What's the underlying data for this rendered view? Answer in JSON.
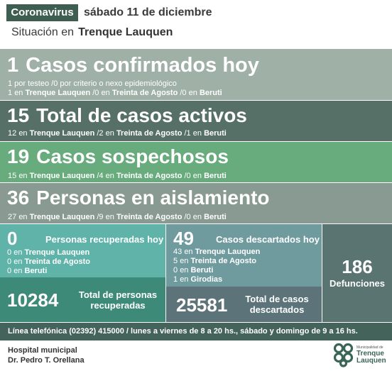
{
  "header": {
    "tag": "Coronavirus",
    "date": "sábado 11 de diciembre",
    "situacion_label": "Situación en",
    "city": "Trenque Lauquen"
  },
  "confirmados": {
    "number": "1",
    "title": "Casos confirmados hoy",
    "line1": {
      "a": "1",
      "a_text": " por testeo  ",
      "b": "/0",
      "b_text": " por criterio o nexo epidemiológico"
    },
    "line2": {
      "a": "1",
      "a_loc": "Trenque Lauquen",
      "b": "/0",
      "b_loc": "Treinta de Agosto",
      "c": "/0",
      "c_loc": "Beruti"
    }
  },
  "activos": {
    "number": "15",
    "title": "Total de casos activos",
    "line": {
      "a": "12",
      "a_loc": "Trenque Lauquen",
      "b": "/2",
      "b_loc": "Treinta de Agosto",
      "c": "/1",
      "c_loc": "Beruti"
    }
  },
  "sospechosos": {
    "number": "19",
    "title": "Casos sospechosos",
    "line": {
      "a": "15",
      "a_loc": "Trenque Lauquen",
      "b": "/4",
      "b_loc": "Treinta de Agosto",
      "c": "/0",
      "c_loc": "Beruti"
    }
  },
  "aislamiento": {
    "number": "36",
    "title": "Personas en aislamiento",
    "line": {
      "a": "27",
      "a_loc": "Trenque Lauquen",
      "b": "/9",
      "b_loc": "Treinta de Agosto",
      "c": "/0",
      "c_loc": "Beruti"
    }
  },
  "en": "en",
  "recuperadas": {
    "number": "0",
    "title": "Personas recuperadas hoy",
    "rows": [
      {
        "n": "0",
        "loc": "Trenque Lauquen"
      },
      {
        "n": "0",
        "loc": "Treinta de Agosto"
      },
      {
        "n": "0",
        "loc": "Beruti"
      }
    ],
    "total_number": "10284",
    "total_label_1": "Total de personas",
    "total_label_2": "recuperadas"
  },
  "descartados": {
    "number": "49",
    "title": "Casos descartados hoy",
    "rows": [
      {
        "n": "43",
        "loc": "Trenque Lauquen"
      },
      {
        "n": "5",
        "loc": "Treinta de Agosto"
      },
      {
        "n": "0",
        "loc": "Beruti"
      },
      {
        "n": "1",
        "loc": "Girodias"
      }
    ],
    "total_number": "25581",
    "total_label_1": "Total de casos",
    "total_label_2": "descartados"
  },
  "defunciones": {
    "number": "186",
    "label": "Defunciones"
  },
  "phone_line": "Línea telefónica (02392) 415000 / lunes a viernes de 8 a 20 hs., sábado y domingo de 9 a 16 hs.",
  "hospital": {
    "line1": "Hospital municipal",
    "line2": "Dr. Pedro T. Orellana"
  },
  "logo": {
    "small_text": "Municipalidad de",
    "name_1": "Trenque",
    "name_2": "Lauquen"
  },
  "colors": {
    "accent_dark": "#3f5e52",
    "confirmados": "#9fb0a6",
    "activos": "#567068",
    "sospechosos": "#68ac7e",
    "aislamiento": "#889a91"
  }
}
